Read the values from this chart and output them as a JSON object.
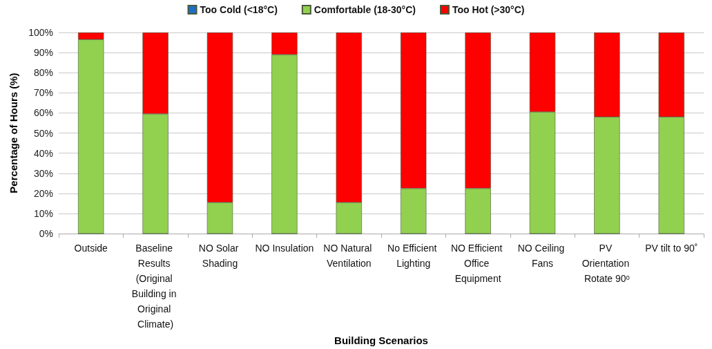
{
  "chart_data": {
    "type": "bar",
    "stacked": true,
    "xlabel": "Building Scenarios",
    "ylabel": "Percentage of Hours (%)",
    "categories": [
      "Outside",
      "Baseline Results (Original Building in Original Climate)",
      "NO Solar Shading",
      "NO Insulation",
      "NO Natural Ventilation",
      "No Efficient Lighting",
      "NO Efficient Office Equipment",
      "NO Ceiling Fans",
      "PV Orientation Rotate 90ᵒ",
      "PV tilt to 90˚"
    ],
    "series": [
      {
        "name": "Too Cold (<18°C)",
        "color": "#1f6fc5",
        "values": [
          0,
          0,
          0,
          0,
          0,
          0,
          0,
          0,
          0,
          0
        ]
      },
      {
        "name": "Comfortable (18-30°C)",
        "color": "#92d050",
        "values": [
          96.5,
          59.5,
          15.5,
          89,
          15.5,
          22.5,
          22.5,
          60.5,
          58,
          58
        ]
      },
      {
        "name": "Too Hot (>30°C)",
        "color": "#ff0000",
        "values": [
          3.5,
          40.5,
          84.5,
          11,
          84.5,
          77.5,
          77.5,
          39.5,
          42,
          42
        ]
      }
    ],
    "ylim": [
      0,
      100
    ],
    "yticks": [
      {
        "value": 0,
        "label": "0%"
      },
      {
        "value": 10,
        "label": "10%"
      },
      {
        "value": 20,
        "label": "20%"
      },
      {
        "value": 30,
        "label": "30%"
      },
      {
        "value": 40,
        "label": "40%"
      },
      {
        "value": 50,
        "label": "50%"
      },
      {
        "value": 60,
        "label": "60%"
      },
      {
        "value": 70,
        "label": "70%"
      },
      {
        "value": 80,
        "label": "80%"
      },
      {
        "value": 90,
        "label": "90%"
      },
      {
        "value": 100,
        "label": "100%"
      }
    ],
    "grid": "y",
    "legend": "top"
  }
}
